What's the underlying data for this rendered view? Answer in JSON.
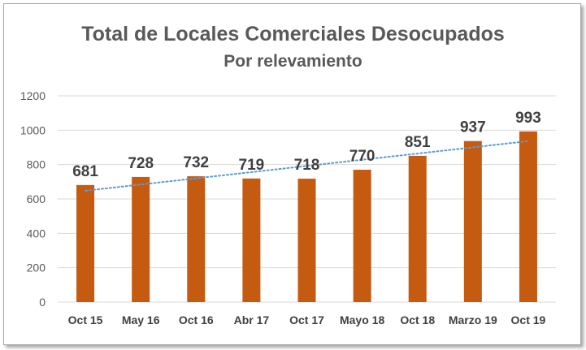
{
  "chart_data": {
    "type": "bar",
    "title": "Total de Locales Comerciales Desocupados",
    "subtitle": "Por relevamiento",
    "categories": [
      "Oct 15",
      "May 16",
      "Oct 16",
      "Abr 17",
      "Oct 17",
      "Mayo 18",
      "Oct 18",
      "Marzo 19",
      "Oct 19"
    ],
    "series": [
      {
        "values": [
          681,
          728,
          732,
          719,
          718,
          770,
          851,
          937,
          993
        ],
        "color": "#c55a11"
      }
    ],
    "trendline": {
      "type": "linear",
      "style": "dotted",
      "color": "#5b9bd5"
    },
    "data_labels": [
      "681",
      "728",
      "732",
      "719",
      "718",
      "770",
      "851",
      "937",
      "993"
    ],
    "yticks": [
      "0",
      "200",
      "400",
      "600",
      "800",
      "1000",
      "1200"
    ],
    "ylim": [
      0,
      1200
    ],
    "grid": true,
    "legend": "none"
  }
}
